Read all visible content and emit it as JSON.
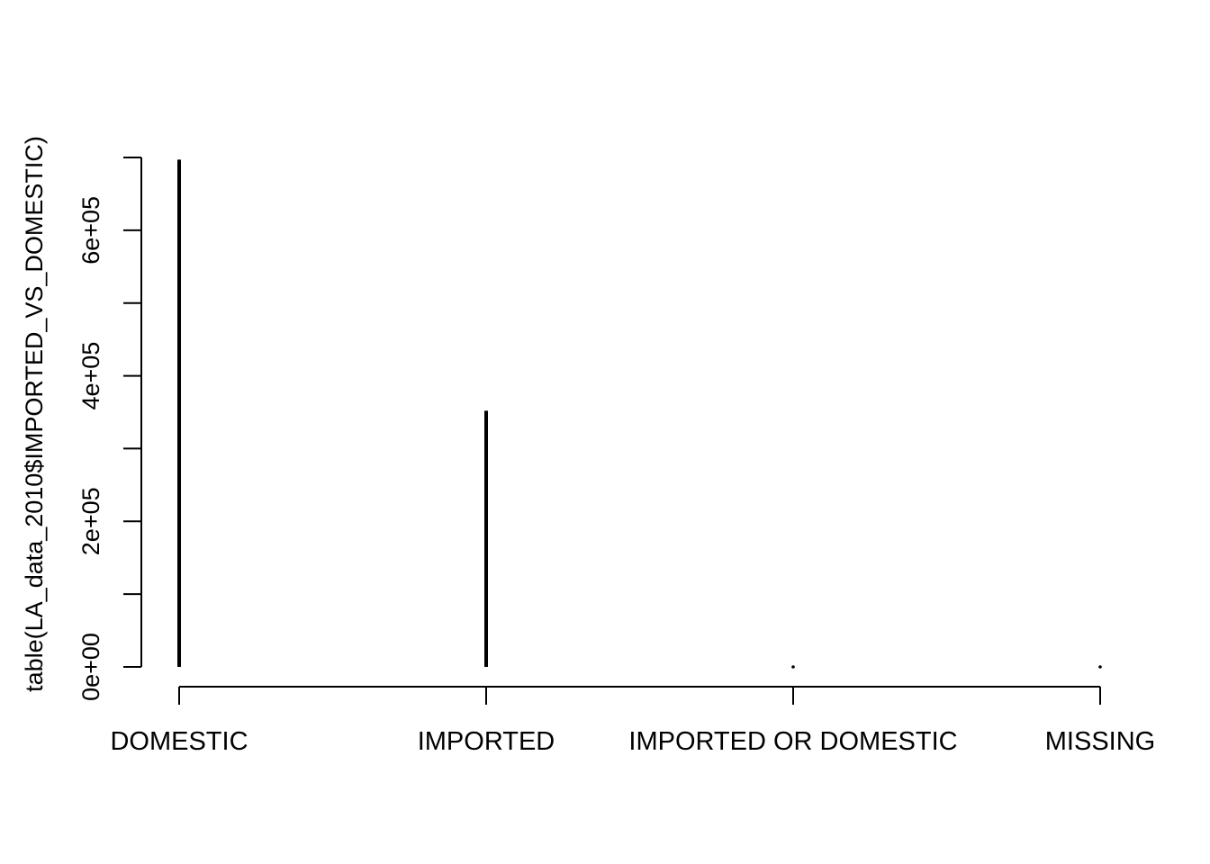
{
  "chart_data": {
    "type": "bar",
    "style": "histogram-spikes",
    "ylabel": "table(LA_data_2010$IMPORTED_VS_DOMESTIC)",
    "categories": [
      "DOMESTIC",
      "IMPORTED",
      "IMPORTED OR DOMESTIC",
      "MISSING"
    ],
    "values": [
      697000,
      352000,
      0,
      0
    ],
    "ylim": [
      0,
      700000
    ],
    "y_ticks": [
      0,
      100000,
      200000,
      300000,
      400000,
      500000,
      600000,
      700000
    ],
    "y_tick_labels": [
      {
        "value": 0,
        "label": "0e+00"
      },
      {
        "value": 200000,
        "label": "2e+05"
      },
      {
        "value": 400000,
        "label": "4e+05"
      },
      {
        "value": 600000,
        "label": "6e+05"
      }
    ],
    "grid": false,
    "legend": "none",
    "colors": {
      "bars": "#000000",
      "axes": "#000000",
      "background": "#ffffff"
    }
  }
}
